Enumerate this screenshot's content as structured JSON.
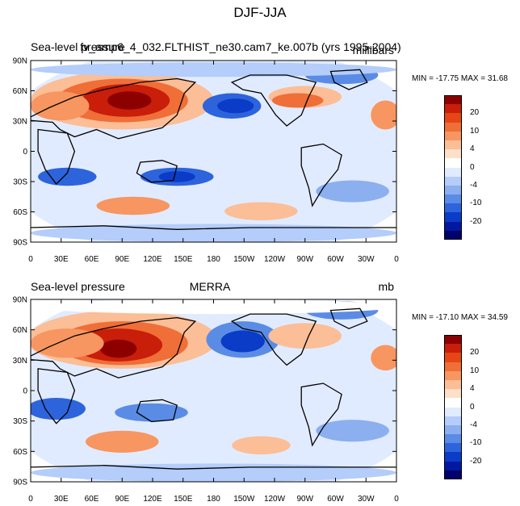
{
  "figure": {
    "title": "DJF-JJA"
  },
  "panels": [
    {
      "id": "model",
      "left_label": "Sea-level pressure",
      "center_label": "fv_amp6_4_032.FLTHIST_ne30.cam7_ke.007b (yrs 1995-2004)",
      "right_label": "millibars",
      "min_max": "MIN = -17.75 MAX =  31.68"
    },
    {
      "id": "obs",
      "left_label": "Sea-level pressure",
      "center_label": "MERRA",
      "right_label": "mb",
      "min_max": "MIN = -17.10 MAX =  34.59"
    }
  ],
  "axes": {
    "lat_ticks": [
      "90N",
      "60N",
      "30N",
      "0",
      "30S",
      "60S",
      "90S"
    ],
    "lon_ticks": [
      "0",
      "30E",
      "60E",
      "90E",
      "120E",
      "150E",
      "180",
      "150W",
      "120W",
      "90W",
      "60W",
      "30W",
      "0"
    ]
  },
  "colorbar": {
    "labels": [
      "20",
      "10",
      "4",
      "0",
      "-4",
      "-10",
      "-20"
    ],
    "colors": [
      "#8c0000",
      "#c81e0a",
      "#e64616",
      "#f06e38",
      "#f79660",
      "#fbbe96",
      "#fde0c8",
      "#ffffff",
      "#e1ebff",
      "#b4cdfa",
      "#8caff0",
      "#5a8ce6",
      "#2d64dc",
      "#0a3cc8",
      "#0019a0",
      "#00006e"
    ]
  }
}
